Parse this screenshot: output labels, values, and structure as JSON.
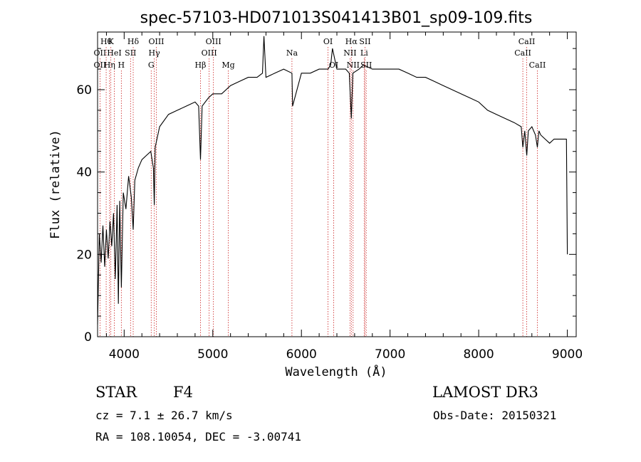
{
  "chart_data": {
    "type": "line",
    "title": "spec-57103-HD071013S041413B01_sp09-109.fits",
    "xlabel": "Wavelength (Å)",
    "ylabel": "Flux (relative)",
    "xlim": [
      3700,
      9100
    ],
    "ylim": [
      0,
      74
    ],
    "xticks": [
      4000,
      5000,
      6000,
      7000,
      8000,
      9000
    ],
    "yticks": [
      0,
      20,
      40,
      60
    ],
    "spectrum": {
      "name": "flux",
      "x": [
        3700,
        3720,
        3740,
        3760,
        3780,
        3800,
        3820,
        3840,
        3860,
        3880,
        3900,
        3920,
        3935,
        3950,
        3968,
        3990,
        4020,
        4050,
        4080,
        4102,
        4120,
        4160,
        4200,
        4250,
        4300,
        4330,
        4340,
        4350,
        4400,
        4500,
        4600,
        4700,
        4800,
        4840,
        4861,
        4880,
        4950,
        5000,
        5100,
        5200,
        5300,
        5400,
        5500,
        5560,
        5577,
        5600,
        5700,
        5800,
        5893,
        5900,
        6000,
        6100,
        6200,
        6300,
        6330,
        6350,
        6400,
        6500,
        6540,
        6563,
        6580,
        6650,
        6700,
        6800,
        6900,
        7000,
        7100,
        7200,
        7300,
        7400,
        7500,
        7600,
        7700,
        7800,
        7900,
        8000,
        8100,
        8200,
        8300,
        8400,
        8480,
        8498,
        8520,
        8542,
        8560,
        8600,
        8640,
        8662,
        8680,
        8700,
        8750,
        8800,
        8850,
        8900,
        8950,
        8990,
        9000
      ],
      "y": [
        3,
        25,
        18,
        27,
        17,
        26,
        19,
        28,
        22,
        30,
        14,
        32,
        8,
        33,
        12,
        35,
        31,
        39,
        34,
        26,
        38,
        41,
        43,
        44,
        45,
        41,
        32,
        46,
        51,
        54,
        55,
        56,
        57,
        56,
        43,
        56,
        58,
        59,
        59,
        61,
        62,
        63,
        63,
        64,
        73,
        63,
        64,
        65,
        64,
        56,
        64,
        64,
        65,
        65,
        66,
        70,
        65,
        65,
        64,
        53,
        64,
        65,
        66,
        65,
        65,
        65,
        65,
        64,
        63,
        63,
        62,
        61,
        60,
        59,
        58,
        57,
        55,
        54,
        53,
        52,
        51,
        46,
        50,
        44,
        50,
        51,
        49,
        46,
        50,
        49,
        48,
        47,
        48,
        48,
        48,
        48,
        20
      ]
    },
    "spectral_lines": [
      {
        "label": "Hθ",
        "x": 3797,
        "row": 0
      },
      {
        "label": "K",
        "x": 3850,
        "row": 0
      },
      {
        "label": "Hδ",
        "x": 4102,
        "row": 0
      },
      {
        "label": "OII",
        "x": 3727,
        "row": 1
      },
      {
        "label": "HeI",
        "x": 3889,
        "row": 1
      },
      {
        "label": "SII",
        "x": 4072,
        "row": 1
      },
      {
        "label": "OII",
        "x": 3727,
        "row": 2
      },
      {
        "label": "Hη",
        "x": 3835,
        "row": 2
      },
      {
        "label": "H",
        "x": 3968,
        "row": 2
      },
      {
        "label": "OIII",
        "x": 4363,
        "row": 0
      },
      {
        "label": "Hγ",
        "x": 4340,
        "row": 1
      },
      {
        "label": "G",
        "x": 4305,
        "row": 2
      },
      {
        "label": "OIII",
        "x": 5007,
        "row": 0
      },
      {
        "label": "OIII",
        "x": 4959,
        "row": 1
      },
      {
        "label": "Hβ",
        "x": 4861,
        "row": 2
      },
      {
        "label": "Mg",
        "x": 5175,
        "row": 2
      },
      {
        "label": "Na",
        "x": 5893,
        "row": 1
      },
      {
        "label": "OI",
        "x": 6300,
        "row": 0
      },
      {
        "label": "OI",
        "x": 6364,
        "row": 2
      },
      {
        "label": "Hα",
        "x": 6563,
        "row": 0
      },
      {
        "label": "SII",
        "x": 6717,
        "row": 0
      },
      {
        "label": "NII",
        "x": 6548,
        "row": 1
      },
      {
        "label": "Li",
        "x": 6708,
        "row": 1
      },
      {
        "label": "NII",
        "x": 6583,
        "row": 2
      },
      {
        "label": "SII",
        "x": 6731,
        "row": 2
      },
      {
        "label": "CaII",
        "x": 8542,
        "row": 0
      },
      {
        "label": "CaII",
        "x": 8498,
        "row": 1
      },
      {
        "label": "CaII",
        "x": 8662,
        "row": 2
      }
    ]
  },
  "info": {
    "object_class": "STAR",
    "subclass": "F4",
    "survey": "LAMOST DR3",
    "redshift": "cz = 7.1 ± 26.7 km/s",
    "obs_date": "Obs-Date: 20150321",
    "coords": "RA = 108.10054, DEC =  -3.00741"
  },
  "colors": {
    "line_marker": "#cc2222",
    "spectrum": "#000000"
  }
}
